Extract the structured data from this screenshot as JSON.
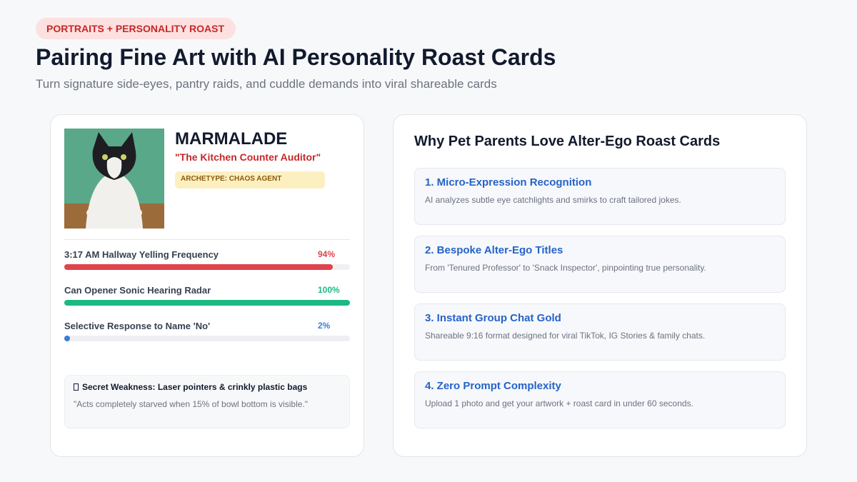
{
  "header": {
    "badge": "PORTRAITS + PERSONALITY ROAST",
    "title": "Pairing Fine Art with AI Personality Roast Cards",
    "subtitle": "Turn signature side-eyes, pantry raids, and cuddle demands into viral shareable cards"
  },
  "card": {
    "name": "MARMALADE",
    "nickname": "\"The Kitchen Counter Auditor\"",
    "archetype": "ARCHETYPE: CHAOS AGENT",
    "stats": [
      {
        "label": "3:17 AM Hallway Yelling Frequency",
        "value": 94,
        "value_label": "94%",
        "color": "#e0434a"
      },
      {
        "label": "Can Opener Sonic Hearing Radar",
        "value": 100,
        "value_label": "100%",
        "color": "#1db984"
      },
      {
        "label": "Selective Response to Name 'No'",
        "value": 2,
        "value_label": "2%",
        "color": "#3b7dd8"
      }
    ],
    "weakness": {
      "title": "Secret Weakness: Laser pointers & crinkly plastic bags",
      "quote": "\"Acts completely starved when 15% of bowl bottom is visible.\""
    }
  },
  "benefits": {
    "title": "Why Pet Parents Love Alter-Ego Roast Cards",
    "items": [
      {
        "title": "1. Micro-Expression Recognition",
        "text": "AI analyzes subtle eye catchlights and smirks to craft tailored jokes."
      },
      {
        "title": "2. Bespoke Alter-Ego Titles",
        "text": "From 'Tenured Professor' to 'Snack Inspector', pinpointing true personality."
      },
      {
        "title": "3. Instant Group Chat Gold",
        "text": "Shareable 9:16 format designed for viral TikTok, IG Stories & family chats."
      },
      {
        "title": "4. Zero Prompt Complexity",
        "text": "Upload 1 photo and get your artwork + roast card in under 60 seconds."
      }
    ]
  }
}
